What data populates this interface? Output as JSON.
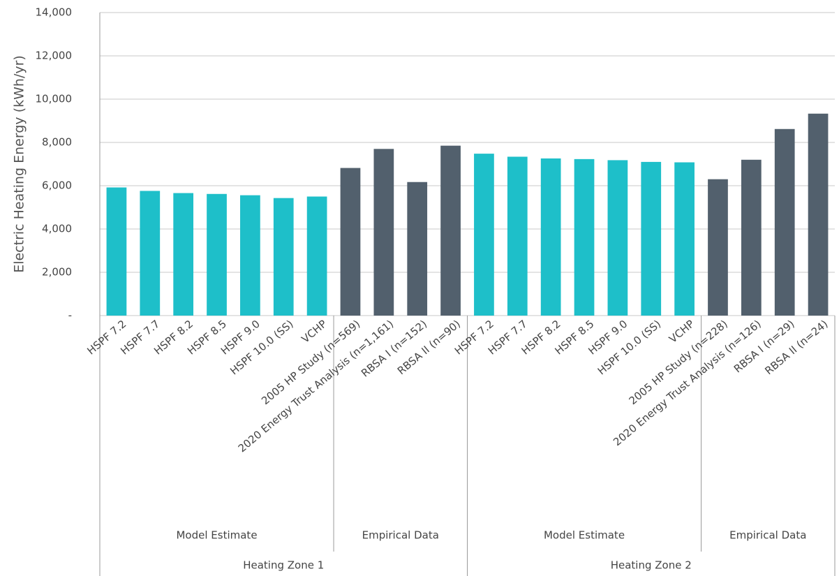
{
  "chart_data": {
    "type": "bar",
    "y_label": "Electric Heating Energy (kWh/yr)",
    "ylim": [
      0,
      14000
    ],
    "yticks": [
      {
        "value": 0,
        "label": "-"
      },
      {
        "value": 2000,
        "label": "2,000"
      },
      {
        "value": 4000,
        "label": "4,000"
      },
      {
        "value": 6000,
        "label": "6,000"
      },
      {
        "value": 8000,
        "label": "8,000"
      },
      {
        "value": 10000,
        "label": "10,000"
      },
      {
        "value": 12000,
        "label": "12,000"
      },
      {
        "value": 14000,
        "label": "14,000"
      }
    ],
    "grid": true,
    "zones": [
      {
        "name": "Heating Zone 1",
        "groups": [
          {
            "name": "Model Estimate",
            "color": "#1ebfc9",
            "categories": [
              "HSPF 7.2",
              "HSPF 7.7",
              "HSPF 8.2",
              "HSPF 8.5",
              "HSPF 9.0",
              "HSPF 10.0 (SS)",
              "VCHP"
            ],
            "values": [
              5920,
              5760,
              5660,
              5620,
              5560,
              5430,
              5500
            ]
          },
          {
            "name": "Empirical Data",
            "color": "#52606d",
            "categories": [
              "2005 HP Study (n=569)",
              "2020 Energy Trust Analysis (n=1,161)",
              "RBSA I (n=152)",
              "RBSA II (n=90)"
            ],
            "values": [
              6820,
              7700,
              6170,
              7850
            ]
          }
        ]
      },
      {
        "name": "Heating Zone 2",
        "groups": [
          {
            "name": "Model Estimate",
            "color": "#1ebfc9",
            "categories": [
              "HSPF 7.2",
              "HSPF 7.7",
              "HSPF 8.2",
              "HSPF 8.5",
              "HSPF 9.0",
              "HSPF 10.0 (SS)",
              "VCHP"
            ],
            "values": [
              7480,
              7340,
              7260,
              7230,
              7180,
              7100,
              7080
            ]
          },
          {
            "name": "Empirical Data",
            "color": "#52606d",
            "categories": [
              "2005 HP Study (n=228)",
              "2020 Energy Trust Analysis (n=126)",
              "RBSA I (n=29)",
              "RBSA II (n=24)"
            ],
            "values": [
              6300,
              7200,
              8620,
              9330
            ]
          }
        ]
      }
    ]
  }
}
